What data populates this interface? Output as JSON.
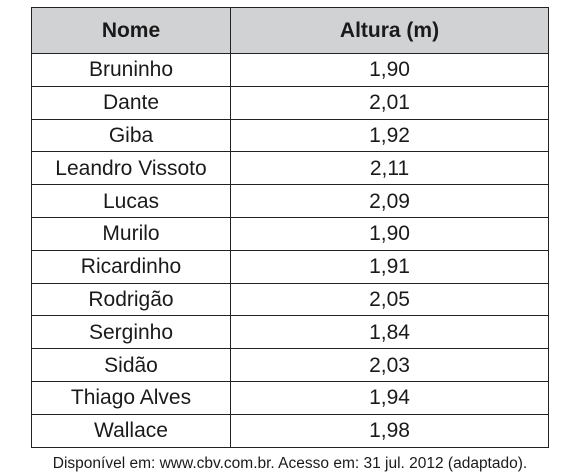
{
  "table": {
    "headers": {
      "name": "Nome",
      "height": "Altura (m)"
    },
    "rows": [
      {
        "name": "Bruninho",
        "height": "1,90"
      },
      {
        "name": "Dante",
        "height": "2,01"
      },
      {
        "name": "Giba",
        "height": "1,92"
      },
      {
        "name": "Leandro Vissoto",
        "height": "2,11"
      },
      {
        "name": "Lucas",
        "height": "2,09"
      },
      {
        "name": "Murilo",
        "height": "1,90"
      },
      {
        "name": "Ricardinho",
        "height": "1,91"
      },
      {
        "name": "Rodrigão",
        "height": "2,05"
      },
      {
        "name": "Serginho",
        "height": "1,84"
      },
      {
        "name": "Sidão",
        "height": "2,03"
      },
      {
        "name": "Thiago Alves",
        "height": "1,94"
      },
      {
        "name": "Wallace",
        "height": "1,98"
      }
    ]
  },
  "source": "Disponível em: www.cbv.com.br. Acesso em: 31 jul. 2012 (adaptado).",
  "colors": {
    "header_bg": "#d1d2d4",
    "border": "#222222",
    "text": "#1a1a1a"
  }
}
